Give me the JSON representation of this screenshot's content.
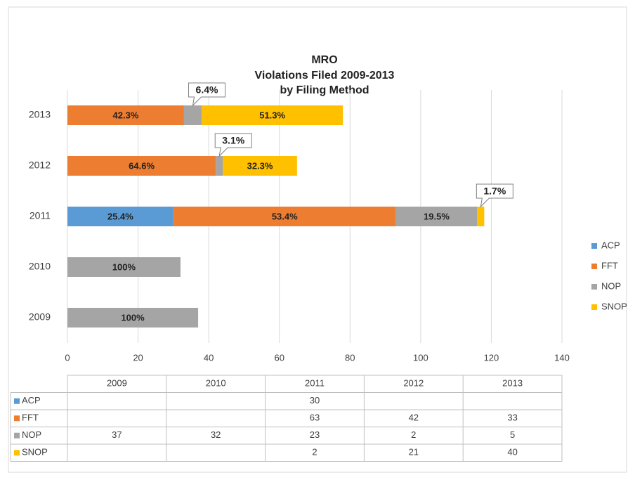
{
  "chart_data": {
    "type": "stacked_barh",
    "title": [
      "MRO",
      "Violations Filed 2009-2013",
      "by Filing Method"
    ],
    "categories": [
      "2009",
      "2010",
      "2011",
      "2012",
      "2013"
    ],
    "series": [
      {
        "name": "ACP",
        "color": "#5b9bd5",
        "values": [
          null,
          null,
          30,
          null,
          null
        ],
        "share_labels": [
          null,
          null,
          "25.4%",
          null,
          null
        ]
      },
      {
        "name": "FFT",
        "color": "#ed7d31",
        "values": [
          null,
          null,
          63,
          42,
          33
        ],
        "share_labels": [
          null,
          null,
          "53.4%",
          "64.6%",
          "42.3%"
        ]
      },
      {
        "name": "NOP",
        "color": "#a5a5a5",
        "values": [
          37,
          32,
          23,
          2,
          5
        ],
        "share_labels": [
          "100%",
          "100%",
          "19.5%",
          "3.1%",
          "6.4%"
        ]
      },
      {
        "name": "SNOP",
        "color": "#ffc000",
        "values": [
          null,
          null,
          2,
          21,
          40
        ],
        "share_labels": [
          null,
          null,
          "1.7%",
          "32.3%",
          "51.3%"
        ]
      }
    ],
    "xlim": [
      0,
      140
    ],
    "xticks": [
      0,
      20,
      40,
      60,
      80,
      100,
      120,
      140
    ],
    "grid": true,
    "legend": "right",
    "data_table": true
  }
}
